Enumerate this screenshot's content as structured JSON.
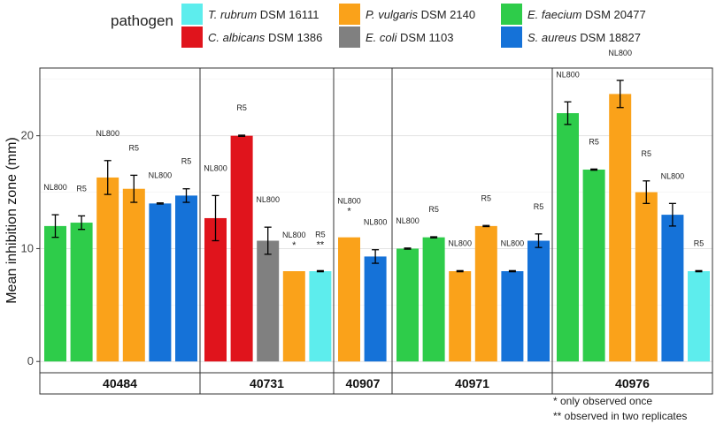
{
  "chart_data": {
    "type": "bar",
    "ylabel": "Mean inhibition zone (mm)",
    "ylim": [
      -1,
      26
    ],
    "yticks": [
      0,
      10,
      20
    ],
    "grid": true,
    "legend": {
      "title": "pathogen",
      "position": "top",
      "items": [
        {
          "key": "trubrum",
          "species": "T. rubrum",
          "strain": "DSM 16111",
          "color": "#5DEDED"
        },
        {
          "key": "calbicans",
          "species": "C. albicans",
          "strain": "DSM 1386",
          "color": "#E0141C"
        },
        {
          "key": "pvulgaris",
          "species": "P. vulgaris",
          "strain": "DSM 2140",
          "color": "#FAA21A"
        },
        {
          "key": "ecoli",
          "species": "E. coli",
          "strain": "DSM 1103",
          "color": "#808080"
        },
        {
          "key": "efaecium",
          "species": "E. faecium",
          "strain": "DSM 20477",
          "color": "#2ECC4A"
        },
        {
          "key": "saureus",
          "species": "S. aureus",
          "strain": "DSM 18827",
          "color": "#1572D8"
        }
      ]
    },
    "panels": [
      {
        "strain": "40484",
        "bars": [
          {
            "pathogen": "efaecium",
            "value": 12.0,
            "err": 1.0,
            "label": "NL800"
          },
          {
            "pathogen": "efaecium",
            "value": 12.3,
            "err": 0.6,
            "label": "R5"
          },
          {
            "pathogen": "pvulgaris",
            "value": 16.3,
            "err": 1.5,
            "label": "NL800"
          },
          {
            "pathogen": "pvulgaris",
            "value": 15.3,
            "err": 1.2,
            "label": "R5"
          },
          {
            "pathogen": "saureus",
            "value": 14.0,
            "err": 0.05,
            "label": "NL800"
          },
          {
            "pathogen": "saureus",
            "value": 14.7,
            "err": 0.6,
            "label": "R5"
          }
        ]
      },
      {
        "strain": "40731",
        "bars": [
          {
            "pathogen": "calbicans",
            "value": 12.7,
            "err": 2.0,
            "label": "NL800"
          },
          {
            "pathogen": "calbicans",
            "value": 20.0,
            "err": 0.05,
            "label": "R5"
          },
          {
            "pathogen": "ecoli",
            "value": 10.7,
            "err": 1.2,
            "label": "NL800"
          },
          {
            "pathogen": "pvulgaris",
            "value": 8.0,
            "err": 0,
            "label": "NL800",
            "mark": "*"
          },
          {
            "pathogen": "trubrum",
            "value": 8.0,
            "err": 0.05,
            "label": "R5",
            "mark": "**"
          }
        ]
      },
      {
        "strain": "40907",
        "bars": [
          {
            "pathogen": "pvulgaris",
            "value": 11.0,
            "err": 0,
            "label": "NL800",
            "mark": "*"
          },
          {
            "pathogen": "saureus",
            "value": 9.3,
            "err": 0.6,
            "label": "NL800"
          }
        ]
      },
      {
        "strain": "40971",
        "bars": [
          {
            "pathogen": "efaecium",
            "value": 10.0,
            "err": 0.05,
            "label": "NL800"
          },
          {
            "pathogen": "efaecium",
            "value": 11.0,
            "err": 0.05,
            "label": "R5"
          },
          {
            "pathogen": "pvulgaris",
            "value": 8.0,
            "err": 0.05,
            "label": "NL800"
          },
          {
            "pathogen": "pvulgaris",
            "value": 12.0,
            "err": 0.05,
            "label": "R5"
          },
          {
            "pathogen": "saureus",
            "value": 8.0,
            "err": 0.05,
            "label": "NL800"
          },
          {
            "pathogen": "saureus",
            "value": 10.7,
            "err": 0.6,
            "label": "R5"
          }
        ]
      },
      {
        "strain": "40976",
        "bars": [
          {
            "pathogen": "efaecium",
            "value": 22.0,
            "err": 1.0,
            "label": "NL800"
          },
          {
            "pathogen": "efaecium",
            "value": 17.0,
            "err": 0.05,
            "label": "R5"
          },
          {
            "pathogen": "pvulgaris",
            "value": 23.7,
            "err": 1.2,
            "label": "NL800"
          },
          {
            "pathogen": "pvulgaris",
            "value": 15.0,
            "err": 1.0,
            "label": "R5"
          },
          {
            "pathogen": "saureus",
            "value": 13.0,
            "err": 1.0,
            "label": "NL800"
          },
          {
            "pathogen": "trubrum",
            "value": 8.0,
            "err": 0.05,
            "label": "R5"
          }
        ]
      }
    ],
    "footnotes": [
      "* only observed once",
      "** observed in two replicates"
    ]
  }
}
